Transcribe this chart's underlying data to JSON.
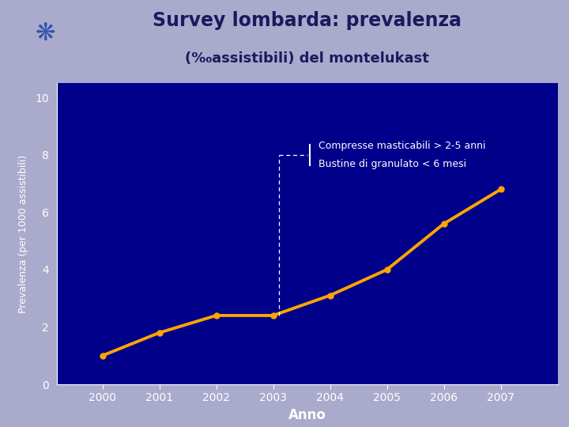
{
  "title_line1": "Survey lombarda: prevalenza",
  "title_line2": "(‰assistibili) del montelukast",
  "header_bg": "#aaaacc",
  "plot_bg": "#00008B",
  "years": [
    2000,
    2001,
    2002,
    2003,
    2004,
    2005,
    2006,
    2007
  ],
  "values": [
    1.0,
    1.8,
    2.4,
    2.4,
    3.1,
    4.0,
    5.6,
    6.8
  ],
  "line_color": "#FFA500",
  "marker_color": "#FFA500",
  "ylabel": "Prevalenza (per 1000 assistibili)",
  "xlabel": "Anno",
  "yticks": [
    0,
    2,
    4,
    6,
    8,
    10
  ],
  "ylim": [
    0,
    10.5
  ],
  "xlim": [
    1999.2,
    2008.0
  ],
  "annotation_line1": "Compresse masticabili > 2-5 anni",
  "annotation_line2": "Bustine di granulato < 6 mesi",
  "tick_color": "#FFFFFF",
  "axis_color": "#FFFFFF",
  "text_color": "#FFFFFF",
  "label_color": "#1a1a5e",
  "title1_fontsize": 17,
  "title2_fontsize": 13,
  "xlabel_fontsize": 12,
  "ylabel_fontsize": 9,
  "tick_fontsize": 10,
  "ann_fontsize": 9
}
